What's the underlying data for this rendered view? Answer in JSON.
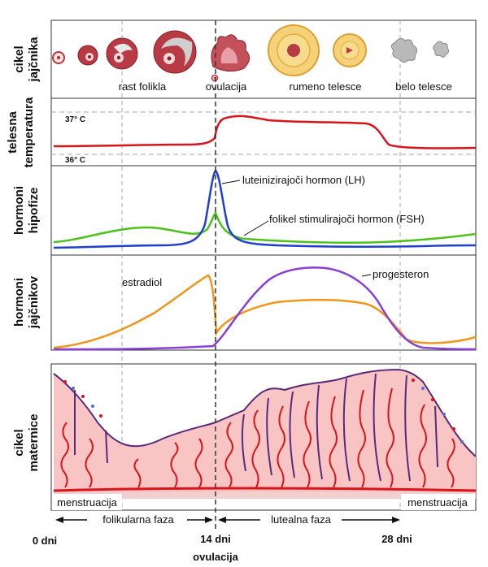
{
  "panels": {
    "ovary": {
      "title_line1": "cikel",
      "title_line2": "jajčnika",
      "labels": [
        "rast folikla",
        "ovulacija",
        "rumeno telesce",
        "belo telesce"
      ]
    },
    "temperature": {
      "title_line1": "telesna",
      "title_line2": "temperatura",
      "high": "37° C",
      "low": "36° C"
    },
    "pituitary": {
      "title_line1": "hormoni",
      "title_line2": "hipofize",
      "lh": "luteinizirajoči hormon (LH)",
      "fsh": "folikel stimulirajoči hormon (FSH)"
    },
    "ovarian": {
      "title_line1": "hormoni",
      "title_line2": "jajčnikov",
      "estradiol": "estradiol",
      "progesteron": "progesteron"
    },
    "uterus": {
      "title_line1": "cikel",
      "title_line2": "maternice",
      "menstruation_left": "menstruacija",
      "menstruation_right": "menstruacija"
    }
  },
  "phases": {
    "follicular": "folikularna faza",
    "luteal": "lutealna faza"
  },
  "axis": {
    "day0": "0 dni",
    "day14": "14 dni",
    "day28": "28 dni",
    "ovulation": "ovulacija"
  },
  "colors": {
    "temperature": "#d9141b",
    "lh": "#1f3fd0",
    "fsh": "#4cc21c",
    "estradiol": "#f0961a",
    "progesterone": "#8a3fd6",
    "endometrium": "#f8c4c4",
    "vessel": "#d9141b",
    "gland": "#5a2a7a"
  }
}
